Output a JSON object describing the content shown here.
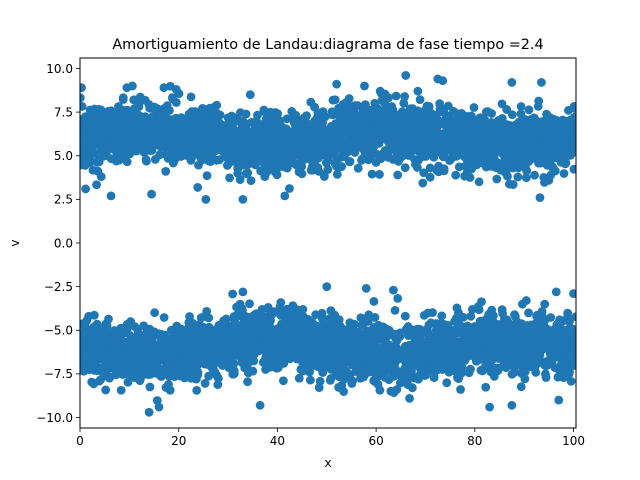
{
  "chart_data": {
    "type": "scatter",
    "title": "Amortiguamiento de Landau:diagrama de fase  tiempo =2.4",
    "xlabel": "x",
    "ylabel": "v",
    "xlim": [
      0,
      100.5
    ],
    "ylim": [
      -10.6,
      10.6
    ],
    "x_ticks": [
      0,
      20,
      40,
      60,
      80,
      100
    ],
    "x_tick_labels": [
      "0",
      "20",
      "40",
      "60",
      "80",
      "100"
    ],
    "y_ticks": [
      -10.0,
      -7.5,
      -5.0,
      -2.5,
      0.0,
      2.5,
      5.0,
      7.5,
      10.0
    ],
    "y_tick_labels": [
      "−10.0",
      "−7.5",
      "−5.0",
      "−2.5",
      "0.0",
      "2.5",
      "5.0",
      "7.5",
      "10.0"
    ],
    "grid": false,
    "legend": "none",
    "marker_color": "#1f77b4",
    "series": [
      {
        "description_units": "x in [0,100], v in data units",
        "beams": [
          {
            "center_v": 6.0,
            "spread_v": 0.85,
            "min_v": 2.5,
            "max_v": 9.6,
            "phase_shift_v": 0.4
          },
          {
            "center_v": -6.0,
            "spread_v": 0.85,
            "min_v": -9.7,
            "max_v": -2.5,
            "phase_shift_v": 0.4
          }
        ],
        "outliers": [
          {
            "x": 0.3,
            "v": 8.9
          },
          {
            "x": 9.5,
            "v": 8.9
          },
          {
            "x": 17.0,
            "v": 8.9
          },
          {
            "x": 19.5,
            "v": 8.8
          },
          {
            "x": 52.0,
            "v": 9.1
          },
          {
            "x": 66.0,
            "v": 9.6
          },
          {
            "x": 72.5,
            "v": 9.4
          },
          {
            "x": 73.5,
            "v": 9.3
          },
          {
            "x": 87.5,
            "v": 9.2
          },
          {
            "x": 93.5,
            "v": 9.2
          },
          {
            "x": 34.5,
            "v": 8.5
          },
          {
            "x": 6.3,
            "v": 2.7
          },
          {
            "x": 25.5,
            "v": 2.5
          },
          {
            "x": 33.0,
            "v": 2.5
          },
          {
            "x": 41.5,
            "v": 2.7
          },
          {
            "x": 93.2,
            "v": 2.6
          },
          {
            "x": 14.5,
            "v": 2.8
          },
          {
            "x": 14.0,
            "v": -9.7
          },
          {
            "x": 36.5,
            "v": -9.3
          },
          {
            "x": 16.0,
            "v": -9.4
          },
          {
            "x": 83.0,
            "v": -9.4
          },
          {
            "x": 87.5,
            "v": -9.3
          },
          {
            "x": 97.0,
            "v": -9.0
          },
          {
            "x": 33.0,
            "v": -2.8
          },
          {
            "x": 50.0,
            "v": -2.5
          },
          {
            "x": 58.0,
            "v": -2.6
          },
          {
            "x": 100.0,
            "v": -2.9
          },
          {
            "x": 96.5,
            "v": -2.8
          },
          {
            "x": 63.5,
            "v": -2.7
          }
        ]
      }
    ]
  }
}
